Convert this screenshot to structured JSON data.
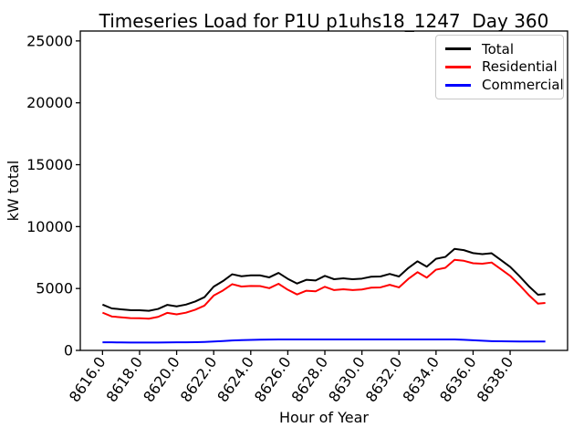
{
  "chart_data": {
    "type": "line",
    "title": "Timeseries Load for P1U p1uhs18_1247  Day 360",
    "xlabel": "Hour of Year",
    "ylabel": "kW total",
    "xlim": [
      8614.8,
      8641.1
    ],
    "ylim": [
      0,
      25800
    ],
    "grid": false,
    "legend_position": "upper right",
    "x_ticks": [
      8616,
      8618,
      8620,
      8622,
      8624,
      8626,
      8628,
      8630,
      8632,
      8634,
      8636,
      8638
    ],
    "x_tick_labels": [
      "8616.0",
      "8618.0",
      "8620.0",
      "8622.0",
      "8624.0",
      "8626.0",
      "8628.0",
      "8630.0",
      "8632.0",
      "8634.0",
      "8636.0",
      "8638.0"
    ],
    "x_tick_rotation_deg": 55,
    "y_ticks": [
      0,
      5000,
      10000,
      15000,
      20000,
      25000
    ],
    "y_tick_labels": [
      "0",
      "5000",
      "10000",
      "15000",
      "20000",
      "25000"
    ],
    "x": [
      8616.0,
      8616.5,
      8617.0,
      8617.5,
      8618.0,
      8618.5,
      8619.0,
      8619.5,
      8620.0,
      8620.5,
      8621.0,
      8621.5,
      8622.0,
      8622.5,
      8623.0,
      8623.5,
      8624.0,
      8624.5,
      8625.0,
      8625.5,
      8626.0,
      8626.5,
      8627.0,
      8627.5,
      8628.0,
      8628.5,
      8629.0,
      8629.5,
      8630.0,
      8630.5,
      8631.0,
      8631.5,
      8632.0,
      8632.5,
      8633.0,
      8633.5,
      8634.0,
      8634.5,
      8635.0,
      8635.5,
      8636.0,
      8636.5,
      8637.0,
      8637.5,
      8638.0,
      8638.5,
      8639.0,
      8639.5,
      8639.9
    ],
    "series": [
      {
        "name": "Total",
        "color": "#000000",
        "values": [
          3700,
          3390,
          3320,
          3250,
          3240,
          3200,
          3350,
          3680,
          3560,
          3700,
          3950,
          4300,
          5150,
          5600,
          6150,
          5990,
          6060,
          6060,
          5900,
          6260,
          5780,
          5400,
          5700,
          5650,
          6020,
          5750,
          5820,
          5750,
          5800,
          5950,
          5970,
          6180,
          5970,
          6650,
          7200,
          6760,
          7400,
          7550,
          8200,
          8100,
          7860,
          7780,
          7850,
          7300,
          6750,
          6000,
          5200,
          4500,
          4550
        ]
      },
      {
        "name": "Residential",
        "color": "#ff0000",
        "values": [
          3050,
          2740,
          2675,
          2610,
          2600,
          2560,
          2710,
          3035,
          2910,
          3045,
          3285,
          3615,
          4430,
          4840,
          5350,
          5160,
          5210,
          5195,
          5025,
          5380,
          4900,
          4520,
          4820,
          4770,
          5140,
          4870,
          4940,
          4870,
          4920,
          5070,
          5090,
          5300,
          5090,
          5770,
          6320,
          5880,
          6520,
          6670,
          7320,
          7240,
          7040,
          7000,
          7100,
          6565,
          6025,
          5280,
          4480,
          3780,
          3830
        ]
      },
      {
        "name": "Commercial",
        "color": "#0000ff",
        "values": [
          650,
          650,
          645,
          640,
          640,
          640,
          640,
          645,
          650,
          655,
          665,
          685,
          720,
          760,
          800,
          830,
          850,
          865,
          875,
          880,
          880,
          880,
          880,
          880,
          880,
          880,
          880,
          880,
          880,
          880,
          880,
          880,
          880,
          880,
          880,
          880,
          880,
          880,
          880,
          860,
          820,
          780,
          750,
          735,
          725,
          720,
          720,
          720,
          720
        ]
      }
    ]
  }
}
